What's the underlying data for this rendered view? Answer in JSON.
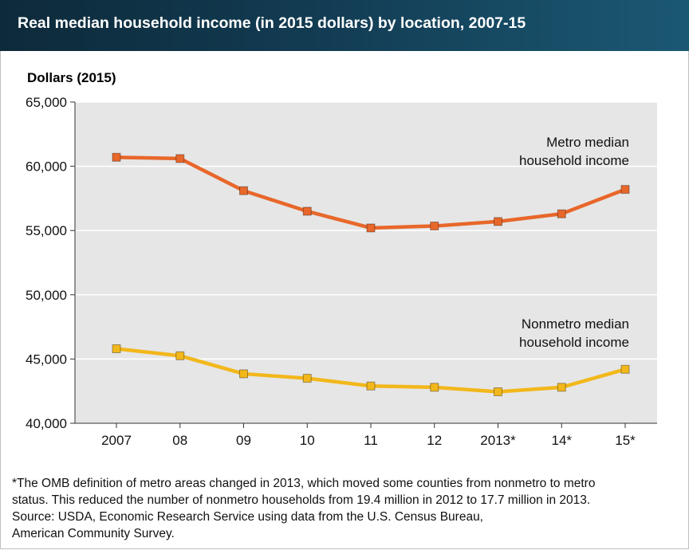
{
  "header": {
    "title": "Real median household income (in 2015 dollars) by location, 2007-15"
  },
  "colors": {
    "metro": "#e8672a",
    "nonmetro": "#f2b71b",
    "plot_background": "#e6e6e6",
    "gridline": "#ffffff"
  },
  "chart_data": {
    "type": "line",
    "title": "Real median household income (in 2015 dollars) by location, 2007-15",
    "ylabel": "Dollars (2015)",
    "xlabel": "",
    "categories": [
      "2007",
      "08",
      "09",
      "10",
      "11",
      "12",
      "2013*",
      "14*",
      "15*"
    ],
    "ylim": [
      40000,
      65000
    ],
    "yticks": [
      40000,
      45000,
      50000,
      55000,
      60000,
      65000
    ],
    "ytick_labels": [
      "40,000",
      "45,000",
      "50,000",
      "55,000",
      "60,000",
      "65,000"
    ],
    "grid": true,
    "series": [
      {
        "name": "Metro median household income",
        "label_lines": [
          "Metro median",
          "household income"
        ],
        "color": "#e8672a",
        "marker": "square",
        "values": [
          60700,
          60600,
          58100,
          56500,
          55200,
          55350,
          55700,
          56300,
          58200
        ]
      },
      {
        "name": "Nonmetro median household income",
        "label_lines": [
          "Nonmetro median",
          "household income"
        ],
        "color": "#f2b71b",
        "marker": "square",
        "values": [
          45800,
          45250,
          43850,
          43500,
          42900,
          42800,
          42450,
          42800,
          44200
        ]
      }
    ]
  },
  "footnote": {
    "line1": "*The OMB definition of metro areas changed in 2013, which moved some counties from nonmetro to metro",
    "line2": "status. This reduced the number of nonmetro households from 19.4 million in 2012 to 17.7 million in 2013.",
    "line3": "Source: USDA, Economic Research Service using data from the U.S. Census Bureau,",
    "line4": "American Community Survey."
  }
}
